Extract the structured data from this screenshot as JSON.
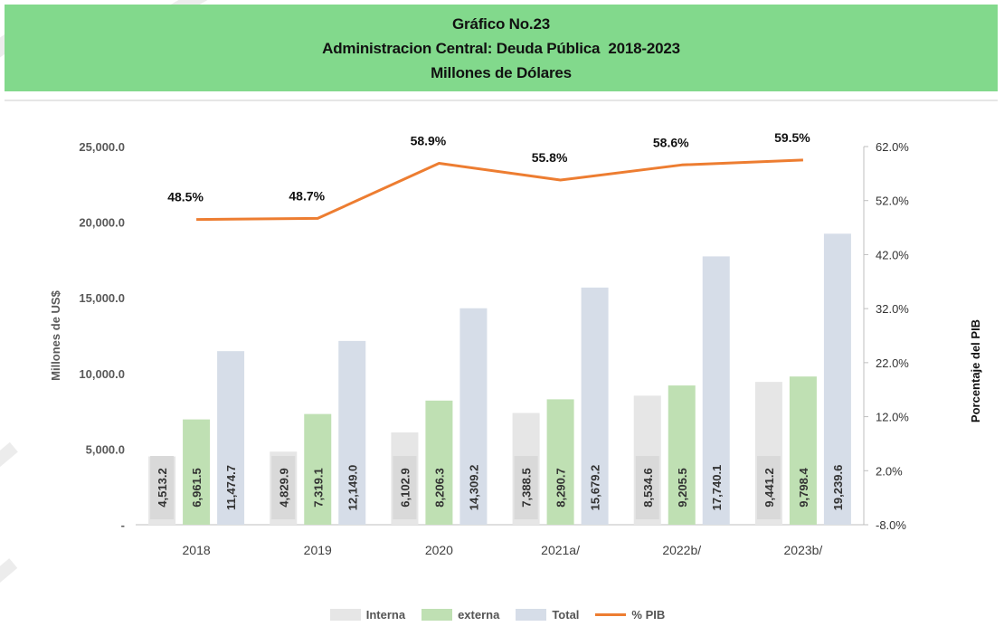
{
  "header": {
    "line1": "Gráfico No.23",
    "line2": "Administracion Central: Deuda Pública  2018-2023",
    "line3": "Millones de Dólares"
  },
  "colors": {
    "interna": "#e6e6e6",
    "externa": "#bfe0b3",
    "total": "#d6dde8",
    "pib": "#ed7d31",
    "label_box": "#d9d9d9"
  },
  "legend": {
    "items": [
      {
        "label": "Interna",
        "kind": "bar",
        "color": "#e6e6e6"
      },
      {
        "label": "externa",
        "kind": "bar",
        "color": "#bfe0b3"
      },
      {
        "label": "Total",
        "kind": "bar",
        "color": "#d6dde8"
      },
      {
        "label": "% PIB",
        "kind": "line",
        "color": "#ed7d31"
      }
    ]
  },
  "chart_data": {
    "type": "bar",
    "title": "",
    "categories": [
      "2018",
      "2019",
      "2020",
      "2021a/",
      "2022b/",
      "2023b/"
    ],
    "series": [
      {
        "name": "Interna",
        "values": [
          4513.2,
          4829.9,
          6102.9,
          7388.5,
          8534.6,
          9441.2
        ],
        "labels": [
          "4,513.2",
          "4,829.9",
          "6,102.9",
          "7,388.5",
          "8,534.6",
          "9,441.2"
        ]
      },
      {
        "name": "externa",
        "values": [
          6961.5,
          7319.1,
          8206.3,
          8290.7,
          9205.5,
          9798.4
        ],
        "labels": [
          "6,961.5",
          "7,319.1",
          "8,206.3",
          "8,290.7",
          "9,205.5",
          "9,798.4"
        ]
      },
      {
        "name": "Total",
        "values": [
          11474.7,
          12149.0,
          14309.2,
          15679.2,
          17740.1,
          19239.6
        ],
        "labels": [
          "11,474.7",
          "12,149.0",
          "14,309.2",
          "15,679.2",
          "17,740.1",
          "19,239.6"
        ]
      }
    ],
    "line_series": {
      "name": "% PIB",
      "values": [
        48.5,
        48.7,
        58.9,
        55.8,
        58.6,
        59.5
      ],
      "labels": [
        "48.5%",
        "48.7%",
        "58.9%",
        "55.8%",
        "58.6%",
        "59.5%"
      ]
    },
    "ylabel": "Millones de US$",
    "y2label": "Porcentaje del PIB",
    "ylim": [
      0,
      25000
    ],
    "yticks": [
      0,
      5000,
      10000,
      15000,
      20000,
      25000
    ],
    "yticklabels": [
      "-",
      "5,000.0",
      "10,000.0",
      "15,000.0",
      "20,000.0",
      "25,000.0"
    ],
    "y2lim": [
      -8,
      62
    ],
    "y2ticks": [
      -8,
      2,
      12,
      22,
      32,
      42,
      52,
      62
    ],
    "y2ticklabels": [
      "-8.0%",
      "2.0%",
      "12.0%",
      "22.0%",
      "32.0%",
      "42.0%",
      "52.0%",
      "62.0%"
    ],
    "grid": false,
    "legend_position": "bottom"
  }
}
